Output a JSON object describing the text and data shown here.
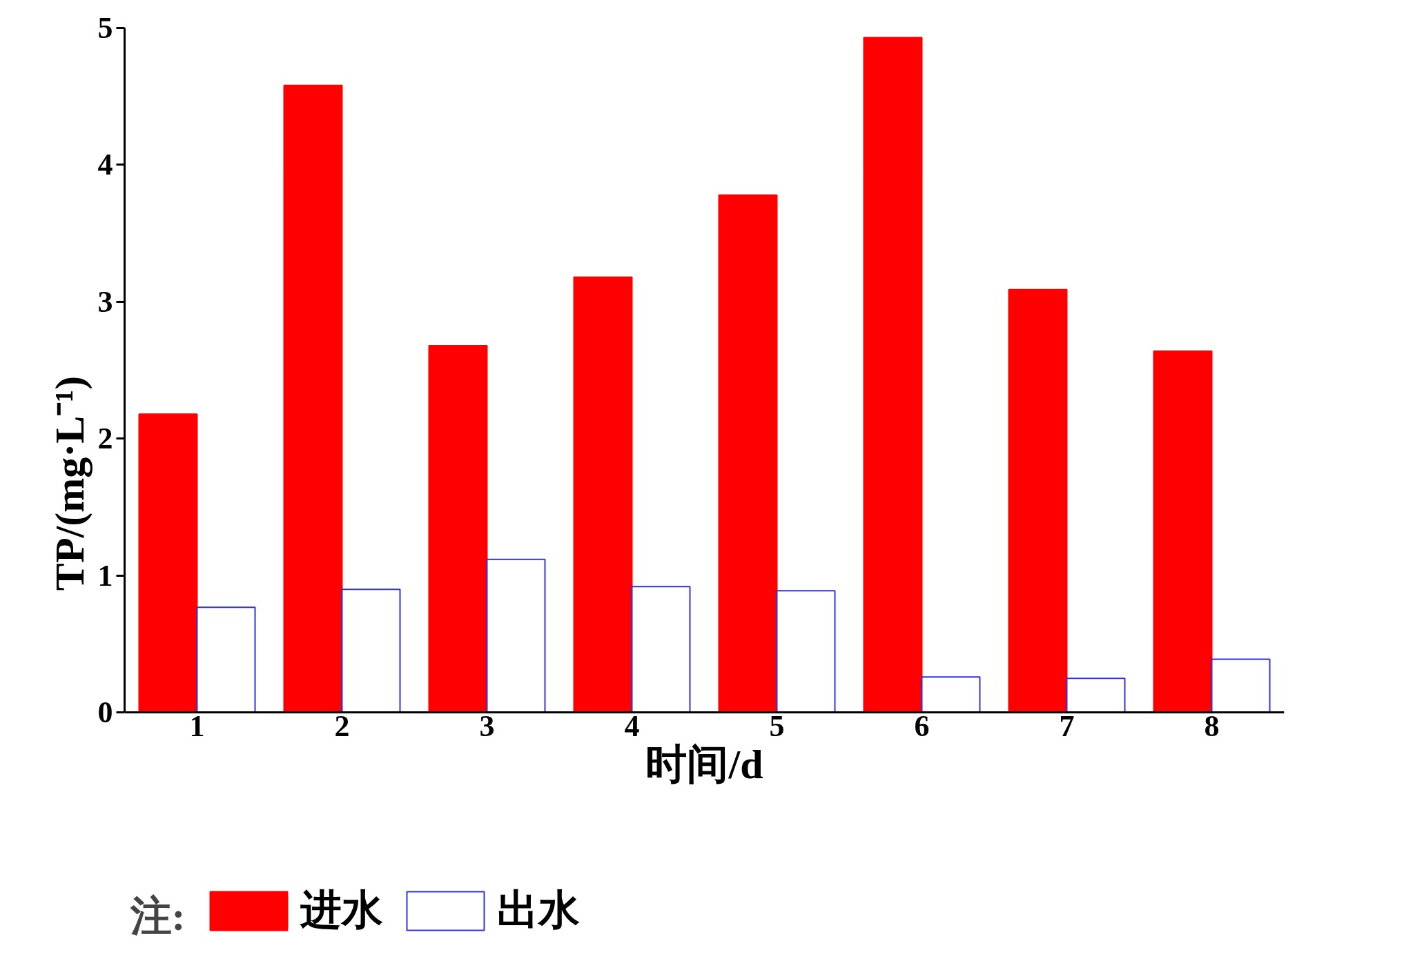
{
  "chart_data": {
    "type": "bar",
    "xlabel": "时间/d",
    "ylabel": "TP/(mg·L⁻¹)",
    "categories": [
      "1",
      "2",
      "3",
      "4",
      "5",
      "6",
      "7",
      "8"
    ],
    "series": [
      {
        "name": "进水",
        "color": "#ff0000",
        "values": [
          2.18,
          4.58,
          2.68,
          3.18,
          3.78,
          4.93,
          3.09,
          2.64
        ]
      },
      {
        "name": "出水",
        "color": "#3333dd",
        "values": [
          0.77,
          0.9,
          1.12,
          0.92,
          0.89,
          0.26,
          0.25,
          0.39
        ]
      }
    ],
    "ylim": [
      0,
      5
    ],
    "yticks": [
      0,
      1,
      2,
      3,
      4,
      5
    ],
    "legend": "bottom left",
    "legend_title": "注:"
  }
}
